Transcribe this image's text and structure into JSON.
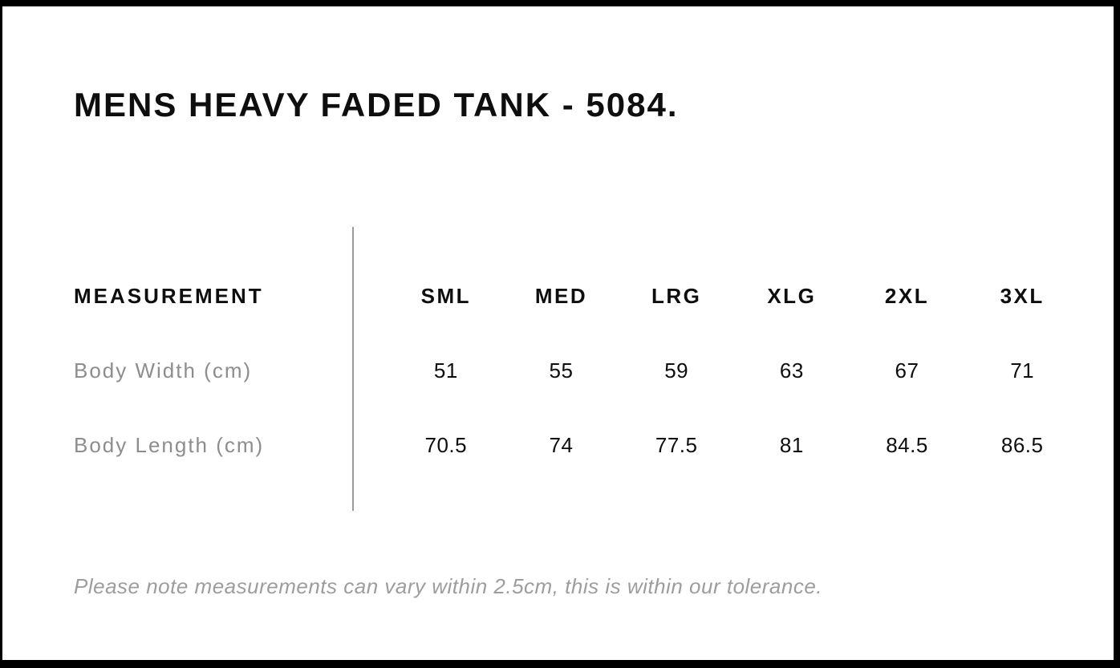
{
  "colors": {
    "frame": "#000000",
    "sheet_background": "#ffffff",
    "heading_text": "#0e0e0e",
    "label_text": "#8d8d8d",
    "note_text": "#9d9d9d",
    "divider": "#9c9c9c"
  },
  "chart_data": {
    "type": "table",
    "title": "MENS HEAVY FADED TANK - 5084.",
    "columns": [
      "MEASUREMENT",
      "SML",
      "MED",
      "LRG",
      "XLG",
      "2XL",
      "3XL"
    ],
    "rows": [
      {
        "label": "Body Width (cm)",
        "values": [
          51,
          55,
          59,
          63,
          67,
          71
        ]
      },
      {
        "label": "Body Length (cm)",
        "values": [
          70.5,
          74,
          77.5,
          81,
          84.5,
          86.5
        ]
      }
    ],
    "footnote": "Please note measurements can vary within 2.5cm, this is within our tolerance."
  }
}
